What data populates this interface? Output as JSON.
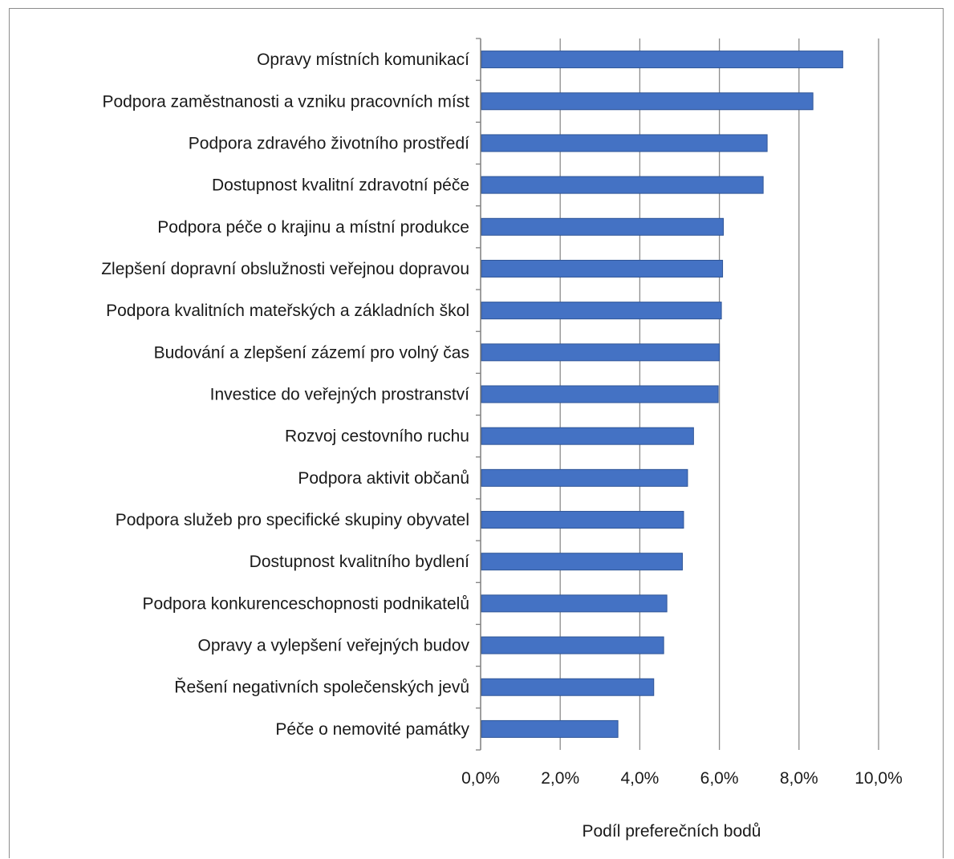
{
  "chart_data": {
    "type": "bar",
    "orientation": "horizontal",
    "title": "",
    "xlabel": "Podíl preferečních bodů",
    "ylabel": "",
    "xlim": [
      0,
      10
    ],
    "x_ticks": [
      0,
      2,
      4,
      6,
      8,
      10
    ],
    "x_tick_labels": [
      "0,0%",
      "2,0%",
      "4,0%",
      "6,0%",
      "8,0%",
      "10,0%"
    ],
    "grid": "vertical",
    "legend": "none",
    "bar_color": "#4472c4",
    "bar_edge_color": "#2f5597",
    "categories": [
      "Opravy místních komunikací",
      "Podpora zaměstnanosti a vzniku pracovních míst",
      "Podpora zdravého životního prostředí",
      "Dostupnost kvalitní zdravotní péče",
      "Podpora péče o krajinu a místní produkce",
      "Zlepšení dopravní obslužnosti veřejnou dopravou",
      "Podpora kvalitních mateřských a základních škol",
      "Budování a zlepšení zázemí pro volný čas",
      "Investice do veřejných prostranství",
      "Rozvoj cestovního ruchu",
      "Podpora aktivit občanů",
      "Podpora služeb pro specifické skupiny obyvatel",
      "Dostupnost kvalitního bydlení",
      "Podpora konkurenceschopnosti podnikatelů",
      "Opravy a vylepšení veřejných budov",
      "Řešení negativních společenských jevů",
      "Péče o nemovité památky"
    ],
    "values": [
      9.1,
      8.35,
      7.2,
      7.1,
      6.1,
      6.08,
      6.05,
      6.0,
      5.97,
      5.35,
      5.2,
      5.1,
      5.07,
      4.68,
      4.6,
      4.35,
      3.45
    ]
  }
}
